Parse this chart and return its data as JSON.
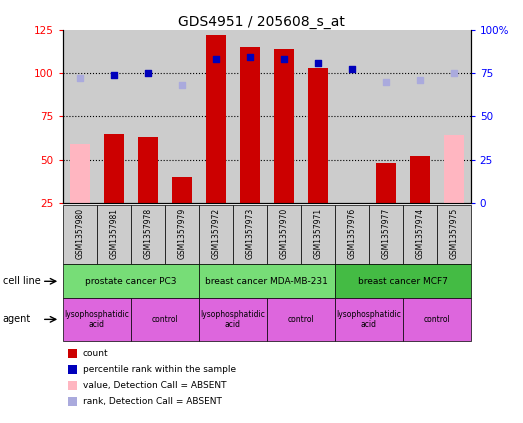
{
  "title": "GDS4951 / 205608_s_at",
  "samples": [
    "GSM1357980",
    "GSM1357981",
    "GSM1357978",
    "GSM1357979",
    "GSM1357972",
    "GSM1357973",
    "GSM1357970",
    "GSM1357971",
    "GSM1357976",
    "GSM1357977",
    "GSM1357974",
    "GSM1357975"
  ],
  "count_values": [
    null,
    65,
    63,
    40,
    122,
    115,
    114,
    103,
    null,
    48,
    52,
    null
  ],
  "count_absent": [
    59,
    null,
    null,
    null,
    null,
    null,
    null,
    null,
    null,
    null,
    null,
    64
  ],
  "percentile_values": [
    null,
    74,
    75,
    null,
    83,
    84,
    83,
    81,
    77,
    null,
    null,
    null
  ],
  "percentile_absent": [
    72,
    null,
    null,
    68,
    null,
    null,
    null,
    null,
    null,
    70,
    71,
    75
  ],
  "cell_lines": [
    {
      "label": "prostate cancer PC3",
      "start": 0,
      "end": 4,
      "color": "#77dd77"
    },
    {
      "label": "breast cancer MDA-MB-231",
      "start": 4,
      "end": 8,
      "color": "#77dd77"
    },
    {
      "label": "breast cancer MCF7",
      "start": 8,
      "end": 12,
      "color": "#44bb44"
    }
  ],
  "agents": [
    {
      "label": "lysophosphatidic\nacid",
      "start": 0,
      "end": 2,
      "color": "#dd66dd"
    },
    {
      "label": "control",
      "start": 2,
      "end": 4,
      "color": "#dd66dd"
    },
    {
      "label": "lysophosphatidic\nacid",
      "start": 4,
      "end": 6,
      "color": "#dd66dd"
    },
    {
      "label": "control",
      "start": 6,
      "end": 8,
      "color": "#dd66dd"
    },
    {
      "label": "lysophosphatidic\nacid",
      "start": 8,
      "end": 10,
      "color": "#dd66dd"
    },
    {
      "label": "control",
      "start": 10,
      "end": 12,
      "color": "#dd66dd"
    }
  ],
  "ylim_left": [
    25,
    125
  ],
  "ylim_right": [
    0,
    100
  ],
  "yticks_left": [
    25,
    50,
    75,
    100,
    125
  ],
  "yticks_right": [
    0,
    25,
    50,
    75,
    100
  ],
  "bar_color": "#cc0000",
  "absent_bar_color": "#ffb6c1",
  "dot_color": "#0000bb",
  "absent_dot_color": "#aaaadd",
  "bg_color": "#cccccc",
  "legend_items": [
    {
      "color": "#cc0000",
      "label": "count"
    },
    {
      "color": "#0000bb",
      "label": "percentile rank within the sample"
    },
    {
      "color": "#ffb6c1",
      "label": "value, Detection Call = ABSENT"
    },
    {
      "color": "#aaaadd",
      "label": "rank, Detection Call = ABSENT"
    }
  ]
}
